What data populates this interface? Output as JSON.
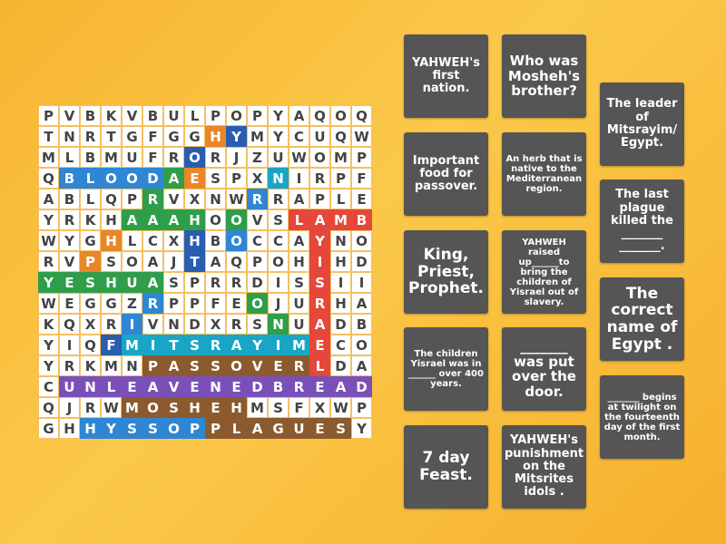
{
  "grid": {
    "rows": [
      [
        "P",
        "V",
        "B",
        "K",
        "V",
        "B",
        "U",
        "L",
        "P",
        "O",
        "P",
        "Y",
        "A",
        "Q",
        "O",
        "Q"
      ],
      [
        "T",
        "N",
        "R",
        "T",
        "G",
        "F",
        "G",
        "G",
        "H",
        "Y",
        "M",
        "Y",
        "C",
        "U",
        "Q",
        "W"
      ],
      [
        "M",
        "L",
        "B",
        "M",
        "U",
        "F",
        "R",
        "O",
        "R",
        "J",
        "Z",
        "U",
        "W",
        "O",
        "M",
        "P"
      ],
      [
        "Q",
        "B",
        "L",
        "O",
        "O",
        "D",
        "A",
        "E",
        "S",
        "P",
        "X",
        "N",
        "I",
        "R",
        "P",
        "F"
      ],
      [
        "A",
        "B",
        "L",
        "Q",
        "P",
        "R",
        "V",
        "X",
        "N",
        "W",
        "R",
        "R",
        "A",
        "P",
        "L",
        "E"
      ],
      [
        "Y",
        "R",
        "K",
        "H",
        "A",
        "A",
        "A",
        "H",
        "O",
        "O",
        "V",
        "S",
        "L",
        "A",
        "M",
        "B"
      ],
      [
        "W",
        "Y",
        "G",
        "H",
        "L",
        "C",
        "X",
        "H",
        "B",
        "O",
        "C",
        "C",
        "A",
        "Y",
        "N",
        "O"
      ],
      [
        "R",
        "V",
        "P",
        "S",
        "O",
        "A",
        "J",
        "T",
        "A",
        "Q",
        "P",
        "O",
        "H",
        "I",
        "H",
        "D"
      ],
      [
        "Y",
        "E",
        "S",
        "H",
        "U",
        "A",
        "S",
        "P",
        "R",
        "R",
        "D",
        "I",
        "S",
        "S",
        "I",
        "I"
      ],
      [
        "W",
        "E",
        "G",
        "G",
        "Z",
        "R",
        "P",
        "P",
        "F",
        "E",
        "O",
        "J",
        "U",
        "R",
        "H",
        "A"
      ],
      [
        "K",
        "Q",
        "X",
        "R",
        "I",
        "V",
        "N",
        "D",
        "X",
        "R",
        "S",
        "N",
        "U",
        "A",
        "D",
        "B"
      ],
      [
        "Y",
        "I",
        "Q",
        "F",
        "M",
        "I",
        "T",
        "S",
        "R",
        "A",
        "Y",
        "I",
        "M",
        "E",
        "C",
        "O"
      ],
      [
        "Y",
        "R",
        "K",
        "M",
        "N",
        "P",
        "A",
        "S",
        "S",
        "O",
        "V",
        "E",
        "R",
        "L",
        "D",
        "A"
      ],
      [
        "C",
        "U",
        "N",
        "L",
        "E",
        "A",
        "V",
        "E",
        "N",
        "E",
        "D",
        "B",
        "R",
        "E",
        "A",
        "D"
      ],
      [
        "Q",
        "J",
        "R",
        "W",
        "M",
        "O",
        "S",
        "H",
        "E",
        "H",
        "M",
        "S",
        "F",
        "X",
        "W",
        "P"
      ],
      [
        "G",
        "H",
        "H",
        "Y",
        "S",
        "S",
        "O",
        "P",
        "P",
        "L",
        "A",
        "G",
        "U",
        "E",
        "S",
        "Y"
      ]
    ],
    "highlight": [
      "................",
      "........ok......",
      ".......k........",
      ".bbbbbgo...c....",
      ".....g....b.....",
      "....gggg.g..rrrr",
      "...o...k.b...r..",
      "..o....k.....r..",
      "gggggg.......r..",
      ".....b....g..r..",
      "....b......g.r..",
      "...kcccccccccr..",
      ".....nnnnnnnnr..",
      ".ppppppppppppppp",
      "....nnnnnn......",
      "..bbbbbbnnnnnnn."
    ],
    "palette": {
      "g": "#2f9e4a",
      "b": "#2f86d3",
      "c": "#19a6c6",
      "p": "#7a50b8",
      "n": "#8b5a2e",
      "r": "#e5483a",
      "o": "#e8862a",
      "k": "#2a5db0"
    }
  },
  "cards": [
    "YAHWEH's first nation.",
    "Important food for passover.",
    "King, Priest, Prophet.",
    "The children Yisrael was in ______ over 400 years.",
    "7 day Feast.",
    "Who was Mosheh's brother?",
    "An herb that is native to the Mediterranean region.",
    "YAHWEH raised up______to bring the children of Yisrael out of slavery.",
    "_______ was put over the door.",
    "YAHWEH's punishment on the Mitsrites idols .",
    "The leader of Mitsrayim/ Egypt.",
    "The last plague killed the _______ _______.",
    "The correct name of Egypt .",
    "_______ begins at twilight on the fourteenth day of the first month."
  ]
}
